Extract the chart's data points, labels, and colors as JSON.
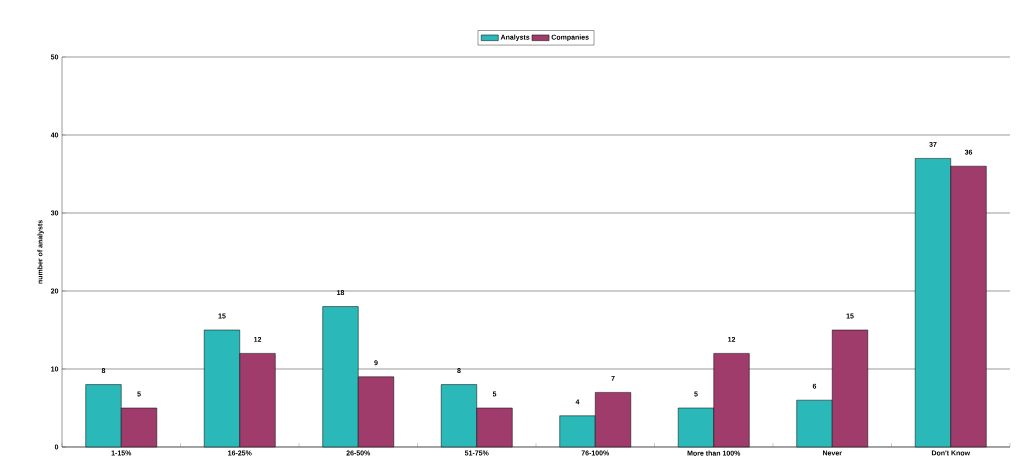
{
  "chart_data": {
    "type": "bar",
    "ylabel": "number of analysts",
    "categories": [
      "1-15%",
      "16-25%",
      "26-50%",
      "51-75%",
      "76-100%",
      "More than 100%",
      "Never",
      "Don't Know"
    ],
    "series": [
      {
        "name": "Analysts",
        "color": "#2bb8b8",
        "values": [
          8,
          15,
          18,
          8,
          4,
          5,
          6,
          37
        ]
      },
      {
        "name": "Companies",
        "color": "#a03c6c",
        "values": [
          5,
          12,
          9,
          5,
          7,
          12,
          15,
          36
        ]
      }
    ],
    "ylim": [
      0,
      50
    ],
    "yticks": [
      0,
      10,
      20,
      30,
      40,
      50
    ],
    "grid": "y",
    "legend": "top",
    "data_labels": true
  }
}
